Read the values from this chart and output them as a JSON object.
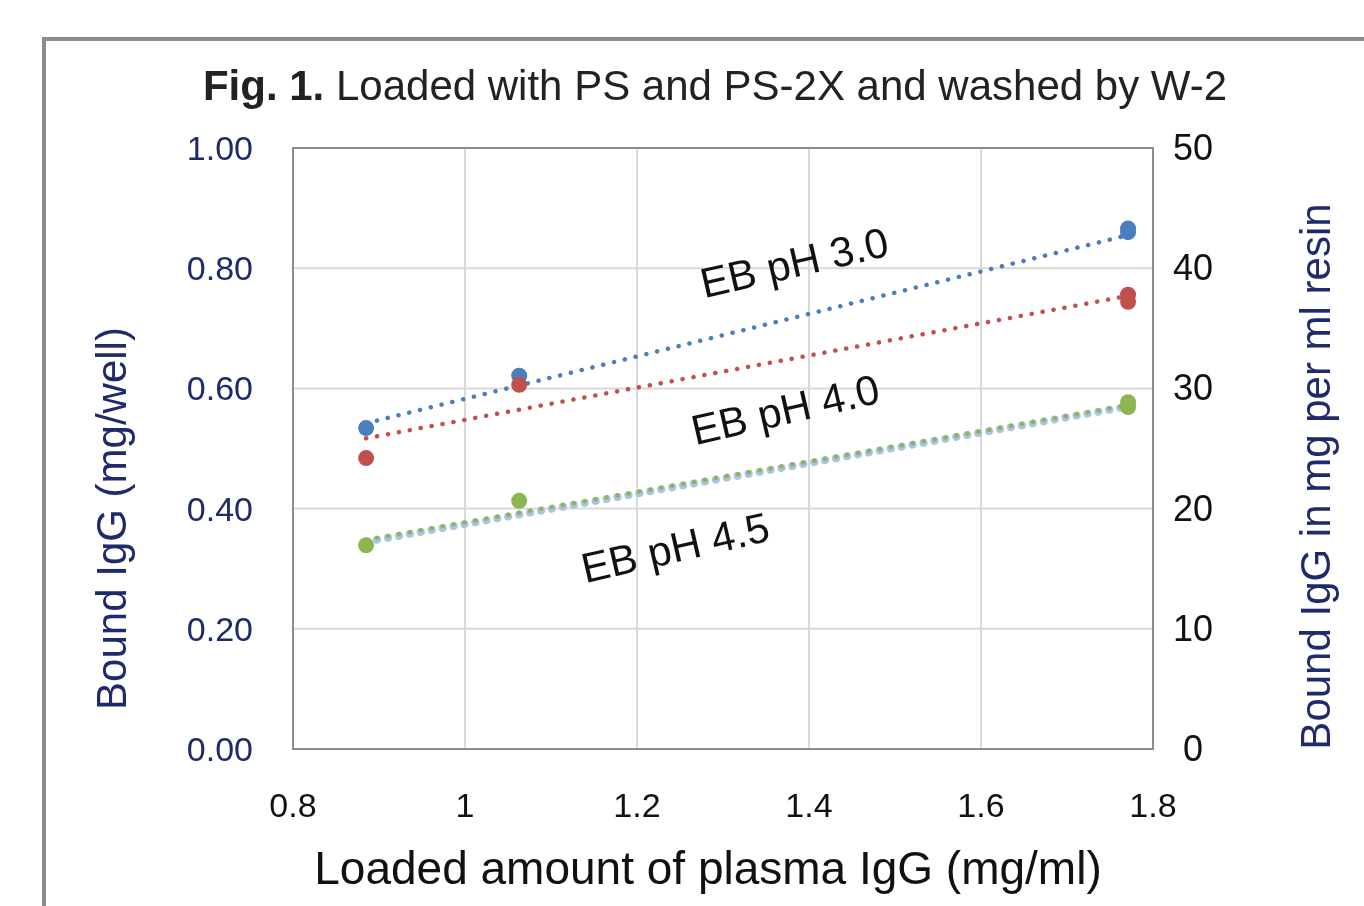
{
  "chart_data": {
    "type": "scatter",
    "title": "Fig. 1. Loaded with PS and PS-2X and washed by W-2",
    "xlabel": "Loaded amount of plasma IgG (mg/ml)",
    "ylabel": "Bound IgG (mg/well)",
    "y2label": "Bound IgG in mg per ml resin",
    "xlim": [
      0.8,
      1.8
    ],
    "xticks": [
      0.8,
      1,
      1.2,
      1.4,
      1.6,
      1.8
    ],
    "ylim": [
      0,
      1
    ],
    "yticks": [
      {
        "value": 0,
        "label": "0.00"
      },
      {
        "value": 0.2,
        "label": "0.20"
      },
      {
        "value": 0.4,
        "label": "0.40"
      },
      {
        "value": 0.6,
        "label": "0.60"
      },
      {
        "value": 0.8,
        "label": "0.80"
      },
      {
        "value": 1,
        "label": "1.00"
      }
    ],
    "y2lim": [
      0,
      50
    ],
    "y2ticks": [
      0,
      10,
      20,
      30,
      40,
      50
    ],
    "grid": true,
    "marker": "circle",
    "series": [
      {
        "type": "line",
        "color": "#a9c4e6",
        "x": [
          0.885,
          1.771
        ],
        "values": [
          0.345,
          0.57
        ],
        "line_style": "dotted",
        "marker": "none"
      },
      {
        "type": "line",
        "color": "#4a7ebf",
        "x": [
          0.885,
          1.771
        ],
        "values": [
          0.542,
          0.855
        ],
        "line_style": "dotted",
        "marker": "none"
      },
      {
        "type": "line",
        "color": "#c0504d",
        "x": [
          0.885,
          1.771
        ],
        "values": [
          0.517,
          0.754
        ],
        "line_style": "dotted",
        "marker": "none"
      },
      {
        "type": "line",
        "color": "#8db650",
        "x": [
          0.885,
          1.771
        ],
        "values": [
          0.348,
          0.572
        ],
        "line_style": "dotted",
        "marker": "none"
      },
      {
        "color": "#4a7ebf",
        "x": [
          0.885,
          1.063,
          1.771,
          1.771
        ],
        "values": [
          0.534,
          0.621,
          0.86,
          0.866
        ]
      },
      {
        "color": "#c0504d",
        "x": [
          0.885,
          1.063,
          1.771,
          1.771
        ],
        "values": [
          0.484,
          0.606,
          0.756,
          0.744
        ]
      },
      {
        "color": "#8db650",
        "x": [
          0.885,
          1.063,
          1.771,
          1.771
        ],
        "values": [
          0.339,
          0.413,
          0.577,
          0.569
        ]
      }
    ],
    "annotations": [
      "EB pH 3.0",
      "EB pH 4.0",
      "EB pH 4.5"
    ]
  }
}
